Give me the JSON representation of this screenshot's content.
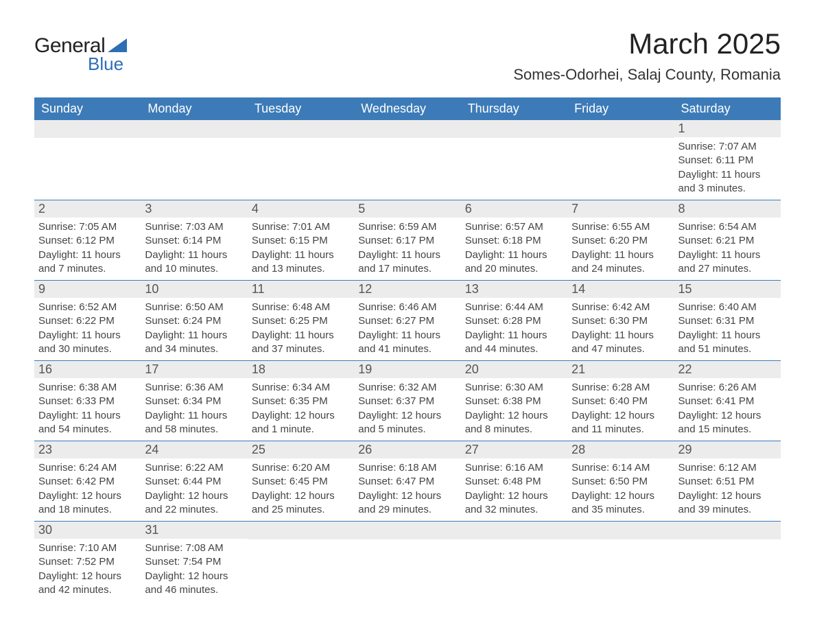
{
  "logo": {
    "text_general": "General",
    "text_blue": "Blue",
    "shape_color": "#2d6fb4"
  },
  "title": "March 2025",
  "location": "Somes-Odorhei, Salaj County, Romania",
  "colors": {
    "header_bg": "#3d7bb8",
    "header_text": "#ffffff",
    "daynum_bg": "#ececec",
    "daynum_text": "#555555",
    "border": "#3d7bb8",
    "body_text": "#444444"
  },
  "weekdays": [
    "Sunday",
    "Monday",
    "Tuesday",
    "Wednesday",
    "Thursday",
    "Friday",
    "Saturday"
  ],
  "weeks": [
    [
      {
        "day": "",
        "sunrise": "",
        "sunset": "",
        "daylight": ""
      },
      {
        "day": "",
        "sunrise": "",
        "sunset": "",
        "daylight": ""
      },
      {
        "day": "",
        "sunrise": "",
        "sunset": "",
        "daylight": ""
      },
      {
        "day": "",
        "sunrise": "",
        "sunset": "",
        "daylight": ""
      },
      {
        "day": "",
        "sunrise": "",
        "sunset": "",
        "daylight": ""
      },
      {
        "day": "",
        "sunrise": "",
        "sunset": "",
        "daylight": ""
      },
      {
        "day": "1",
        "sunrise": "Sunrise: 7:07 AM",
        "sunset": "Sunset: 6:11 PM",
        "daylight": "Daylight: 11 hours and 3 minutes."
      }
    ],
    [
      {
        "day": "2",
        "sunrise": "Sunrise: 7:05 AM",
        "sunset": "Sunset: 6:12 PM",
        "daylight": "Daylight: 11 hours and 7 minutes."
      },
      {
        "day": "3",
        "sunrise": "Sunrise: 7:03 AM",
        "sunset": "Sunset: 6:14 PM",
        "daylight": "Daylight: 11 hours and 10 minutes."
      },
      {
        "day": "4",
        "sunrise": "Sunrise: 7:01 AM",
        "sunset": "Sunset: 6:15 PM",
        "daylight": "Daylight: 11 hours and 13 minutes."
      },
      {
        "day": "5",
        "sunrise": "Sunrise: 6:59 AM",
        "sunset": "Sunset: 6:17 PM",
        "daylight": "Daylight: 11 hours and 17 minutes."
      },
      {
        "day": "6",
        "sunrise": "Sunrise: 6:57 AM",
        "sunset": "Sunset: 6:18 PM",
        "daylight": "Daylight: 11 hours and 20 minutes."
      },
      {
        "day": "7",
        "sunrise": "Sunrise: 6:55 AM",
        "sunset": "Sunset: 6:20 PM",
        "daylight": "Daylight: 11 hours and 24 minutes."
      },
      {
        "day": "8",
        "sunrise": "Sunrise: 6:54 AM",
        "sunset": "Sunset: 6:21 PM",
        "daylight": "Daylight: 11 hours and 27 minutes."
      }
    ],
    [
      {
        "day": "9",
        "sunrise": "Sunrise: 6:52 AM",
        "sunset": "Sunset: 6:22 PM",
        "daylight": "Daylight: 11 hours and 30 minutes."
      },
      {
        "day": "10",
        "sunrise": "Sunrise: 6:50 AM",
        "sunset": "Sunset: 6:24 PM",
        "daylight": "Daylight: 11 hours and 34 minutes."
      },
      {
        "day": "11",
        "sunrise": "Sunrise: 6:48 AM",
        "sunset": "Sunset: 6:25 PM",
        "daylight": "Daylight: 11 hours and 37 minutes."
      },
      {
        "day": "12",
        "sunrise": "Sunrise: 6:46 AM",
        "sunset": "Sunset: 6:27 PM",
        "daylight": "Daylight: 11 hours and 41 minutes."
      },
      {
        "day": "13",
        "sunrise": "Sunrise: 6:44 AM",
        "sunset": "Sunset: 6:28 PM",
        "daylight": "Daylight: 11 hours and 44 minutes."
      },
      {
        "day": "14",
        "sunrise": "Sunrise: 6:42 AM",
        "sunset": "Sunset: 6:30 PM",
        "daylight": "Daylight: 11 hours and 47 minutes."
      },
      {
        "day": "15",
        "sunrise": "Sunrise: 6:40 AM",
        "sunset": "Sunset: 6:31 PM",
        "daylight": "Daylight: 11 hours and 51 minutes."
      }
    ],
    [
      {
        "day": "16",
        "sunrise": "Sunrise: 6:38 AM",
        "sunset": "Sunset: 6:33 PM",
        "daylight": "Daylight: 11 hours and 54 minutes."
      },
      {
        "day": "17",
        "sunrise": "Sunrise: 6:36 AM",
        "sunset": "Sunset: 6:34 PM",
        "daylight": "Daylight: 11 hours and 58 minutes."
      },
      {
        "day": "18",
        "sunrise": "Sunrise: 6:34 AM",
        "sunset": "Sunset: 6:35 PM",
        "daylight": "Daylight: 12 hours and 1 minute."
      },
      {
        "day": "19",
        "sunrise": "Sunrise: 6:32 AM",
        "sunset": "Sunset: 6:37 PM",
        "daylight": "Daylight: 12 hours and 5 minutes."
      },
      {
        "day": "20",
        "sunrise": "Sunrise: 6:30 AM",
        "sunset": "Sunset: 6:38 PM",
        "daylight": "Daylight: 12 hours and 8 minutes."
      },
      {
        "day": "21",
        "sunrise": "Sunrise: 6:28 AM",
        "sunset": "Sunset: 6:40 PM",
        "daylight": "Daylight: 12 hours and 11 minutes."
      },
      {
        "day": "22",
        "sunrise": "Sunrise: 6:26 AM",
        "sunset": "Sunset: 6:41 PM",
        "daylight": "Daylight: 12 hours and 15 minutes."
      }
    ],
    [
      {
        "day": "23",
        "sunrise": "Sunrise: 6:24 AM",
        "sunset": "Sunset: 6:42 PM",
        "daylight": "Daylight: 12 hours and 18 minutes."
      },
      {
        "day": "24",
        "sunrise": "Sunrise: 6:22 AM",
        "sunset": "Sunset: 6:44 PM",
        "daylight": "Daylight: 12 hours and 22 minutes."
      },
      {
        "day": "25",
        "sunrise": "Sunrise: 6:20 AM",
        "sunset": "Sunset: 6:45 PM",
        "daylight": "Daylight: 12 hours and 25 minutes."
      },
      {
        "day": "26",
        "sunrise": "Sunrise: 6:18 AM",
        "sunset": "Sunset: 6:47 PM",
        "daylight": "Daylight: 12 hours and 29 minutes."
      },
      {
        "day": "27",
        "sunrise": "Sunrise: 6:16 AM",
        "sunset": "Sunset: 6:48 PM",
        "daylight": "Daylight: 12 hours and 32 minutes."
      },
      {
        "day": "28",
        "sunrise": "Sunrise: 6:14 AM",
        "sunset": "Sunset: 6:50 PM",
        "daylight": "Daylight: 12 hours and 35 minutes."
      },
      {
        "day": "29",
        "sunrise": "Sunrise: 6:12 AM",
        "sunset": "Sunset: 6:51 PM",
        "daylight": "Daylight: 12 hours and 39 minutes."
      }
    ],
    [
      {
        "day": "30",
        "sunrise": "Sunrise: 7:10 AM",
        "sunset": "Sunset: 7:52 PM",
        "daylight": "Daylight: 12 hours and 42 minutes."
      },
      {
        "day": "31",
        "sunrise": "Sunrise: 7:08 AM",
        "sunset": "Sunset: 7:54 PM",
        "daylight": "Daylight: 12 hours and 46 minutes."
      },
      {
        "day": "",
        "sunrise": "",
        "sunset": "",
        "daylight": ""
      },
      {
        "day": "",
        "sunrise": "",
        "sunset": "",
        "daylight": ""
      },
      {
        "day": "",
        "sunrise": "",
        "sunset": "",
        "daylight": ""
      },
      {
        "day": "",
        "sunrise": "",
        "sunset": "",
        "daylight": ""
      },
      {
        "day": "",
        "sunrise": "",
        "sunset": "",
        "daylight": ""
      }
    ]
  ]
}
